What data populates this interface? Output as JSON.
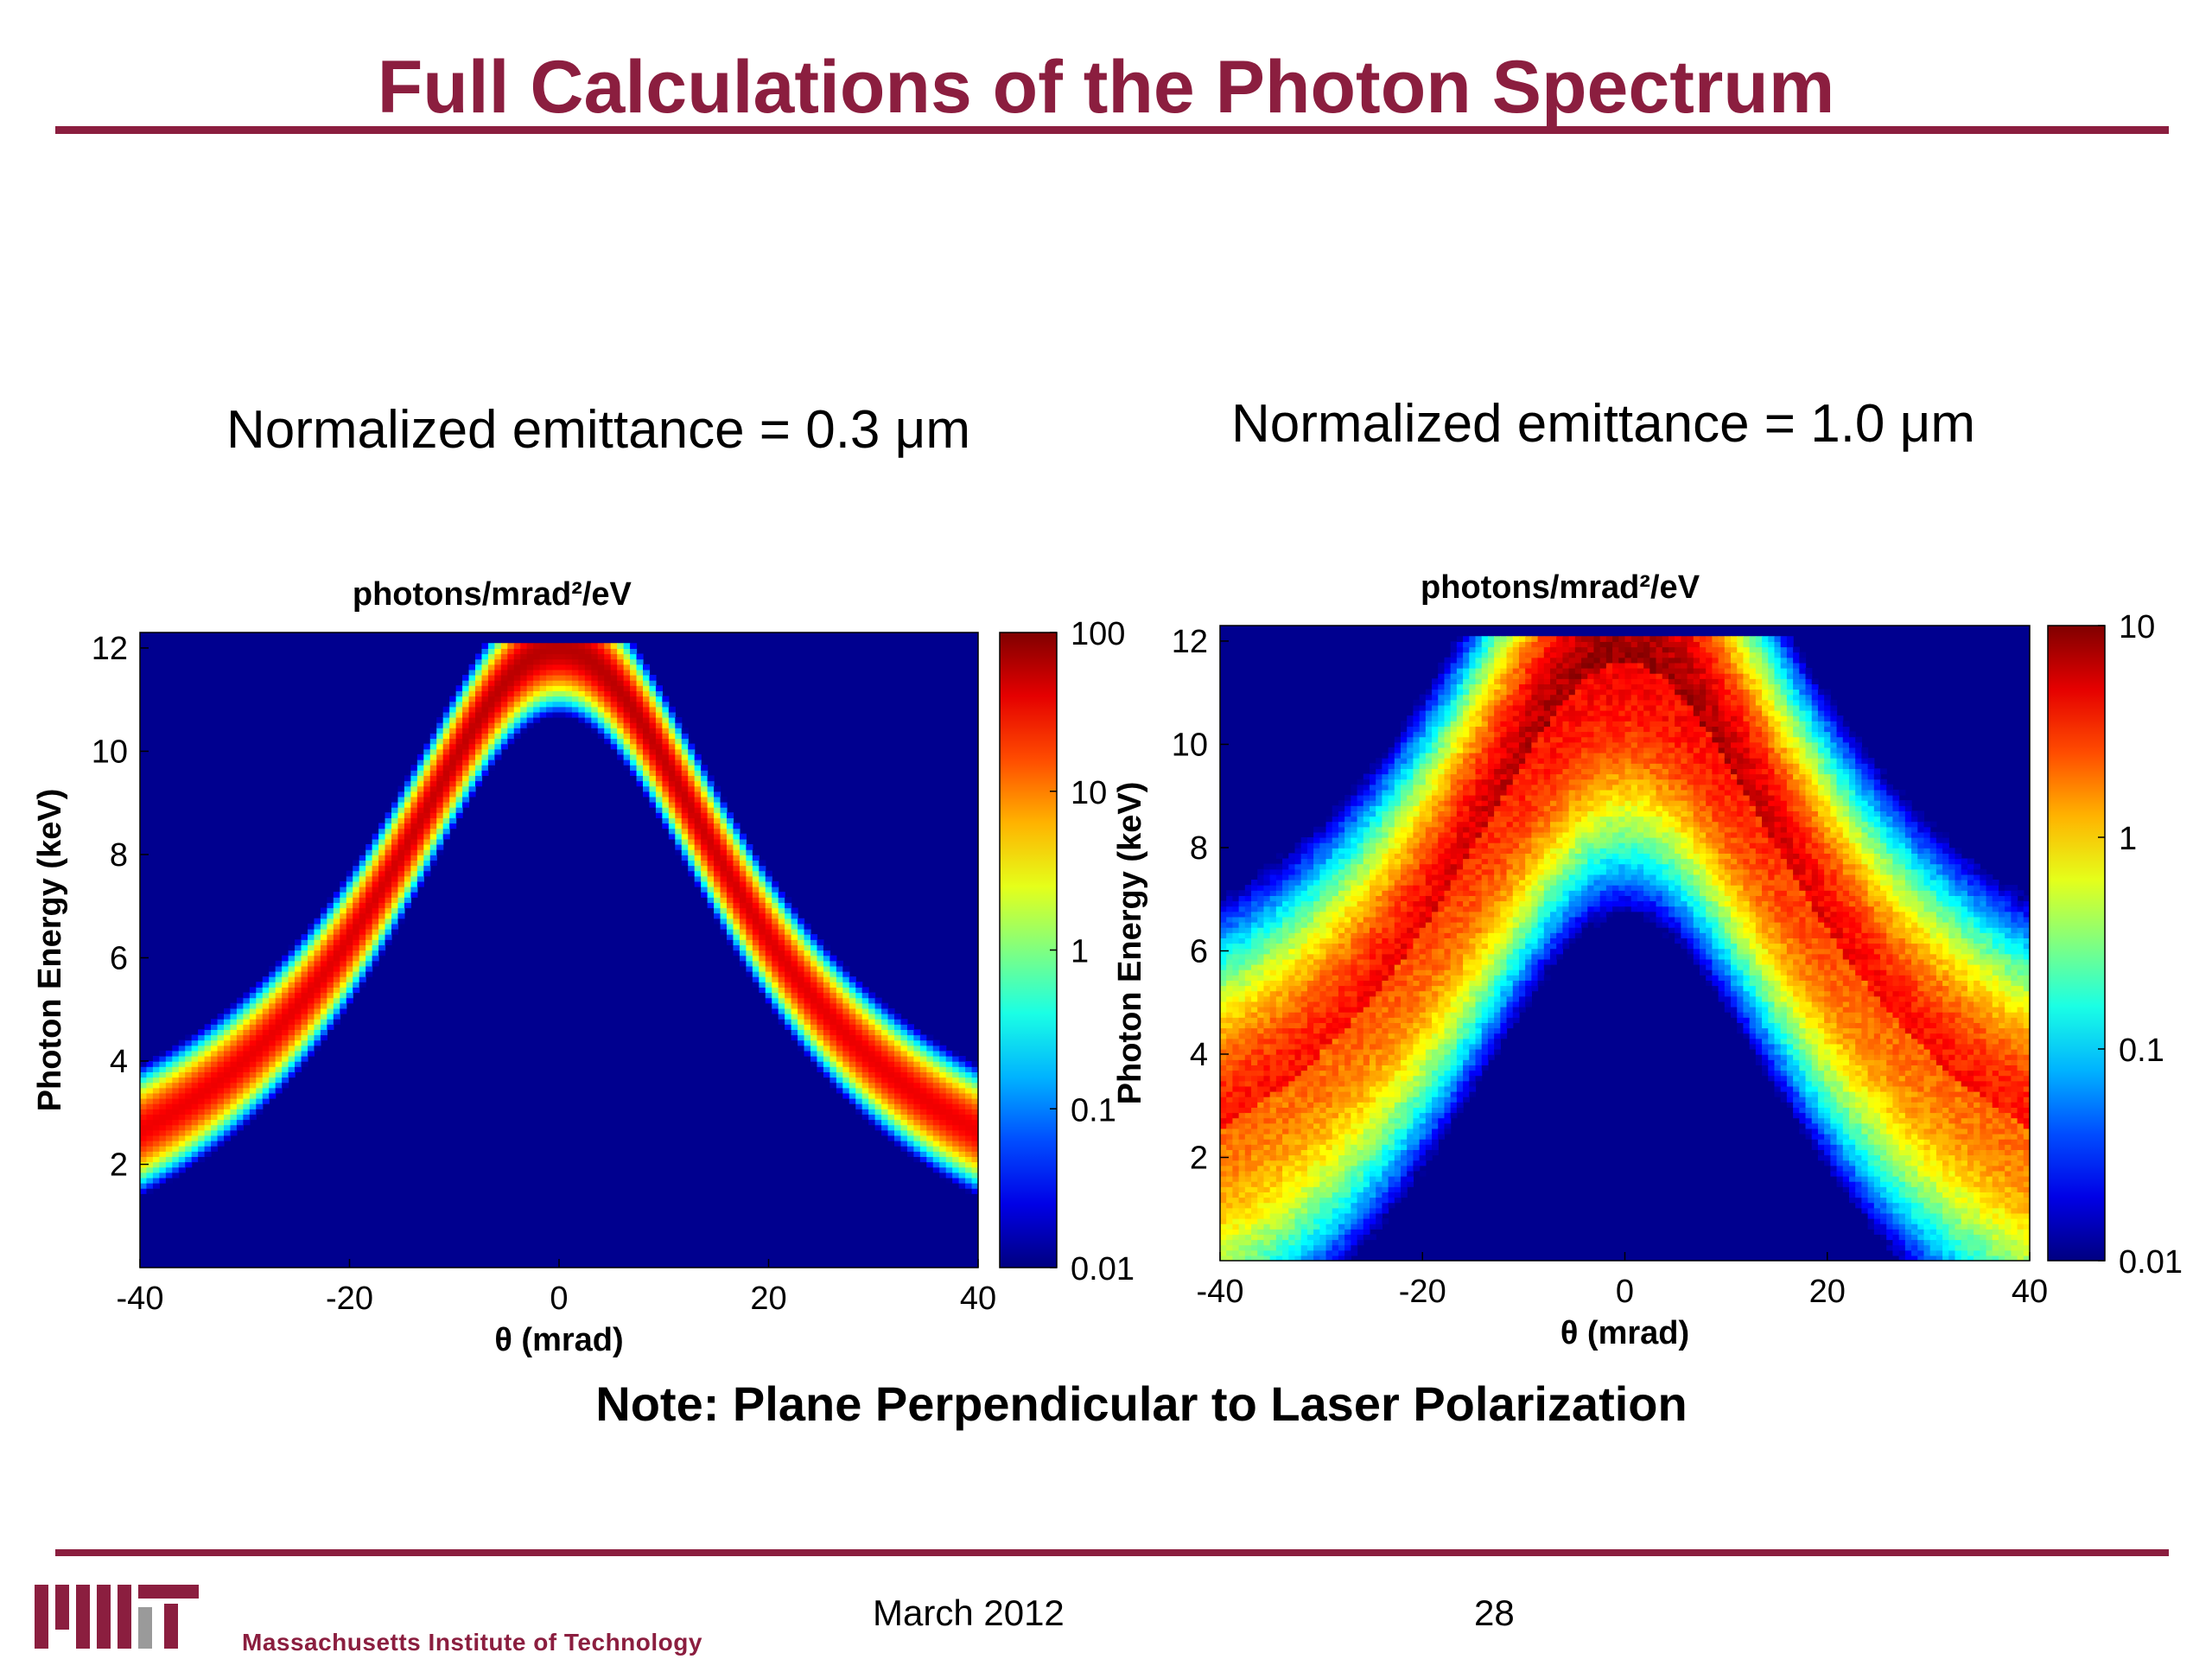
{
  "slide": {
    "title": "Full Calculations of the Photon Spectrum",
    "subtitle_left": "Normalized emittance = 0.3 μm",
    "subtitle_right": "Normalized emittance = 1.0 μm",
    "note": "Note: Plane Perpendicular to Laser Polarization",
    "footer_date": "March 2012",
    "footer_page": "28",
    "footer_institution": "Massachusetts Institute of Technology"
  },
  "colors": {
    "brand": "#8b1e3f",
    "background_plot": "#00008f"
  },
  "chart_data": [
    {
      "type": "heatmap",
      "title": "photons/mrad²/eV",
      "xlabel": "θ (mrad)",
      "ylabel": "Photon Energy (keV)",
      "xlim": [
        -40,
        40
      ],
      "ylim": [
        0,
        12.3
      ],
      "xticks": [
        "-40",
        "-20",
        "0",
        "20",
        "40"
      ],
      "yticks": [
        "2",
        "4",
        "6",
        "8",
        "10",
        "12"
      ],
      "colorbar": {
        "scale": "log",
        "min": 0.01,
        "max": 100,
        "ticks": [
          "0.01",
          "0.1",
          "1",
          "10",
          "100"
        ]
      },
      "peak_energy_keV": 12,
      "band_width_keV": 1.0
    },
    {
      "type": "heatmap",
      "title": "photons/mrad²/eV",
      "xlabel": "θ (mrad)",
      "ylabel": "Photon Energy (keV)",
      "xlim": [
        -40,
        40
      ],
      "ylim": [
        0,
        12.3
      ],
      "xticks": [
        "-40",
        "-20",
        "0",
        "20",
        "40"
      ],
      "yticks": [
        "2",
        "4",
        "6",
        "8",
        "10",
        "12"
      ],
      "colorbar": {
        "scale": "log",
        "min": 0.01,
        "max": 10,
        "ticks": [
          "0.01",
          "0.1",
          "1",
          "10"
        ]
      },
      "peak_energy_keV": 12,
      "band_width_keV": 3.5
    }
  ]
}
